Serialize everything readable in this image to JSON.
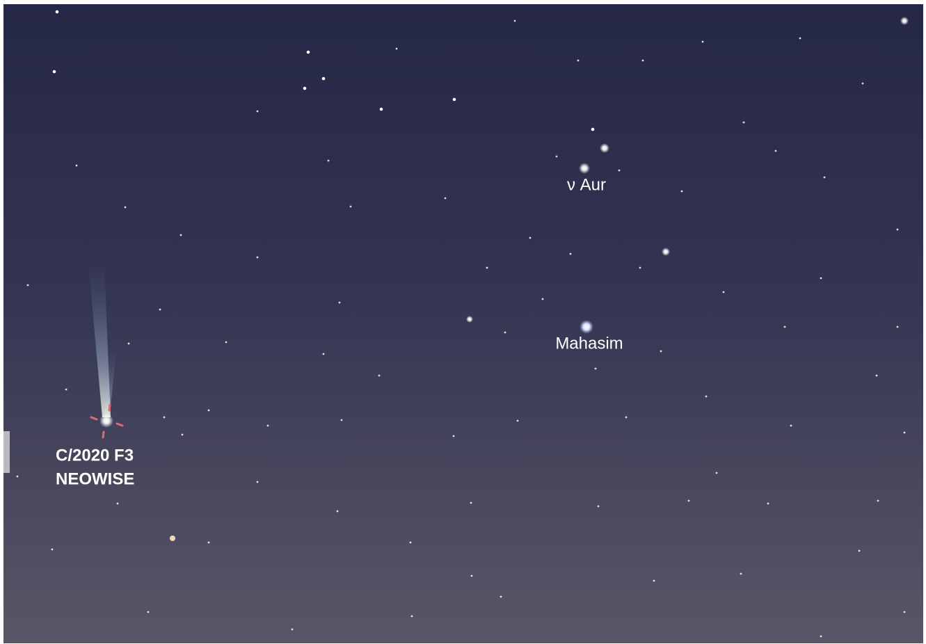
{
  "labels": {
    "star_1": "ν Aur",
    "star_2": "Mahasim",
    "comet": [
      "C/2020 F3",
      "NEOWISE"
    ]
  }
}
